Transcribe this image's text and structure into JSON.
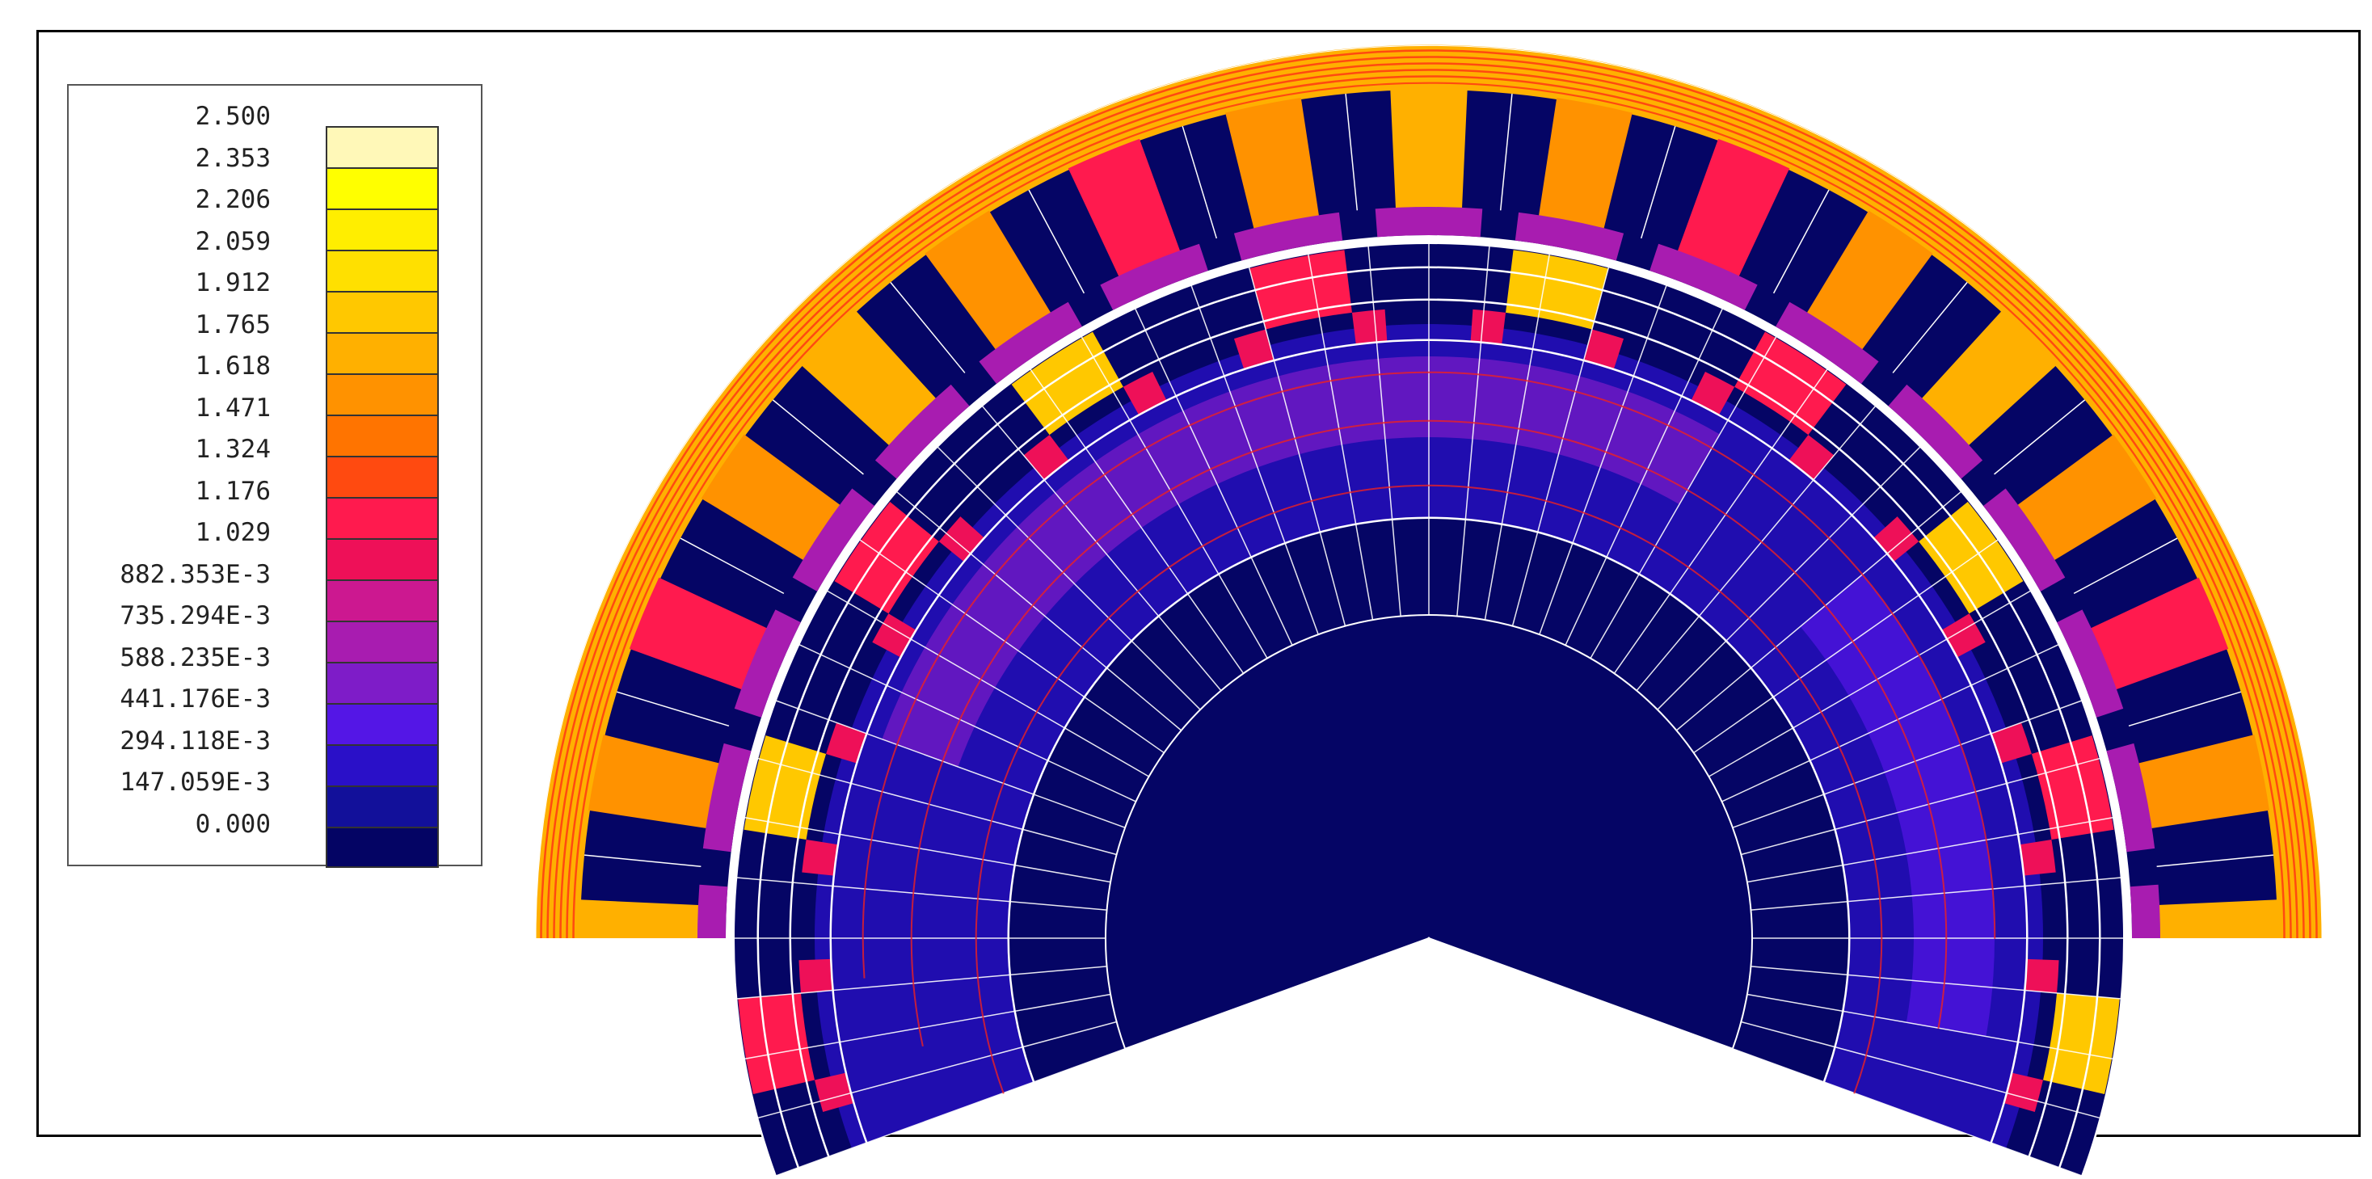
{
  "legend": {
    "labels": [
      "2.500",
      "2.353",
      "2.206",
      "2.059",
      "1.912",
      "1.765",
      "1.618",
      "1.471",
      "1.324",
      "1.176",
      "1.029",
      "882.353E-3",
      "735.294E-3",
      "588.235E-3",
      "441.176E-3",
      "294.118E-3",
      "147.059E-3",
      "0.000"
    ],
    "colors": [
      "#fff8b8",
      "#ffff00",
      "#ffee00",
      "#ffe000",
      "#ffc800",
      "#ffb000",
      "#ff9200",
      "#ff7400",
      "#ff4a10",
      "#ff1a4e",
      "#ee1058",
      "#cc1890",
      "#a81cb0",
      "#7e1cc8",
      "#5416e6",
      "#2a10c8",
      "#12109a",
      "#040464"
    ]
  },
  "diagram": {
    "background_color": "#050565",
    "mesh_color": "#ffffff",
    "stator_slots": 16,
    "rotor_poles": 10,
    "rotor_teeth": 44,
    "rotor_angle_deg": 20
  }
}
